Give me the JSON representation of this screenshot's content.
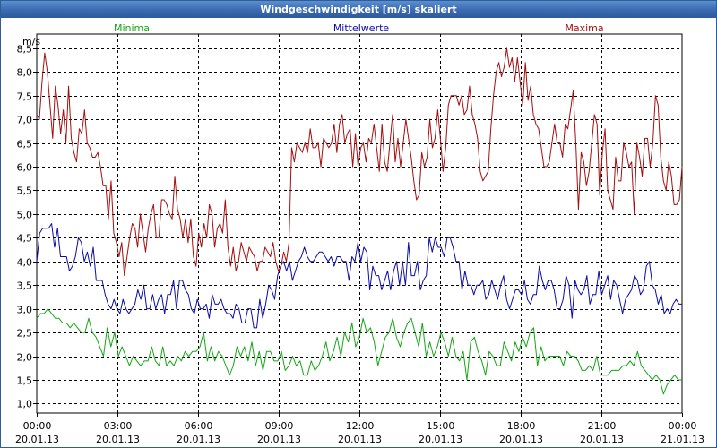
{
  "window": {
    "title": "Windgeschwindigkeit [m/s] skaliert"
  },
  "colors": {
    "min": "#13a713",
    "mean": "#0b0ba8",
    "max": "#a60d0d",
    "grid": "#000000",
    "text": "#000000"
  },
  "chart_data": {
    "type": "line",
    "title": "Windgeschwindigkeit [m/s] skaliert",
    "ylabel": "m/s",
    "xlabel": "",
    "ylim": [
      0.8,
      8.8
    ],
    "yticks": [
      "1,0",
      "1,5",
      "2,0",
      "2,5",
      "3,0",
      "3,5",
      "4,0",
      "4,5",
      "5,0",
      "5,5",
      "6,0",
      "6,5",
      "7,0",
      "7,5",
      "8,0",
      "8,5"
    ],
    "ytick_values": [
      1.0,
      1.5,
      2.0,
      2.5,
      3.0,
      3.5,
      4.0,
      4.5,
      5.0,
      5.5,
      6.0,
      6.5,
      7.0,
      7.5,
      8.0,
      8.5
    ],
    "xrange_hours": [
      0,
      24
    ],
    "xticks": [
      {
        "time": "00:00",
        "date": "20.01.13"
      },
      {
        "time": "03:00",
        "date": "20.01.13"
      },
      {
        "time": "06:00",
        "date": "20.01.13"
      },
      {
        "time": "09:00",
        "date": "20.01.13"
      },
      {
        "time": "12:00",
        "date": "20.01.13"
      },
      {
        "time": "15:00",
        "date": "20.01.13"
      },
      {
        "time": "18:00",
        "date": "20.01.13"
      },
      {
        "time": "21:00",
        "date": "20.01.13"
      },
      {
        "time": "00:00",
        "date": "21.01.13"
      }
    ],
    "grid": true,
    "legend_placement": "top",
    "series": [
      {
        "name": "Minima",
        "key": "min",
        "values": [
          2.8,
          2.9,
          2.9,
          3.0,
          2.9,
          2.8,
          2.8,
          2.7,
          2.7,
          2.6,
          2.7,
          2.6,
          2.5,
          2.5,
          2.8,
          2.5,
          2.4,
          2.2,
          2.0,
          2.6,
          2.2,
          2.5,
          2.0,
          2.2,
          2.0,
          1.8,
          2.0,
          1.9,
          1.8,
          1.9,
          1.9,
          2.2,
          1.9,
          1.8,
          2.2,
          1.8,
          1.9,
          1.8,
          2.0,
          1.9,
          2.1,
          2.0,
          2.1,
          2.1,
          2.2,
          2.5,
          1.9,
          2.2,
          1.9,
          2.1,
          2.0,
          1.8,
          1.6,
          1.8,
          2.2,
          2.0,
          2.2,
          1.9,
          2.3,
          1.8,
          2.1,
          1.7,
          2.1,
          2.1,
          1.9,
          1.9,
          2.1,
          1.7,
          1.8,
          2.0,
          1.8,
          1.9,
          1.6,
          1.6,
          1.9,
          1.7,
          1.8,
          2.0,
          2.3,
          1.9,
          2.1,
          2.4,
          2.0,
          2.5,
          2.3,
          2.7,
          2.2,
          2.4,
          2.8,
          2.5,
          2.6,
          2.3,
          1.8,
          2.1,
          2.4,
          2.5,
          2.8,
          2.4,
          2.2,
          2.5,
          2.7,
          2.8,
          2.5,
          2.2,
          2.7,
          2.0,
          2.3,
          2.0,
          2.2,
          2.5,
          2.3,
          2.0,
          2.4,
          2.0,
          1.9,
          2.1,
          1.5,
          2.3,
          2.4,
          2.1,
          1.9,
          1.6,
          2.1,
          2.0,
          1.8,
          1.8,
          2.3,
          2.1,
          1.9,
          2.3,
          2.1,
          2.4,
          2.2,
          2.5,
          2.6,
          1.8,
          2.2,
          1.9,
          2.0,
          2.0,
          2.0,
          2.0,
          1.8,
          2.1,
          2.0,
          2.0,
          1.9,
          1.7,
          1.7,
          1.8,
          1.7,
          2.0,
          1.6,
          1.6,
          1.6,
          1.7,
          1.7,
          1.7,
          1.8,
          1.8,
          1.9,
          1.8,
          2.1,
          1.8,
          1.7,
          1.6,
          1.5,
          1.6,
          1.5,
          1.2,
          1.4,
          1.5,
          1.6,
          1.5,
          1.5
        ]
      },
      {
        "name": "Mittelwerte",
        "key": "mean",
        "values": [
          4.0,
          4.6,
          4.7,
          4.7,
          4.7,
          4.8,
          4.3,
          4.7,
          4.1,
          4.1,
          4.1,
          3.8,
          3.9,
          4.1,
          4.5,
          4.4,
          4.0,
          4.2,
          3.9,
          4.3,
          3.6,
          3.6,
          3.6,
          3.3,
          3.1,
          3.0,
          3.2,
          3.0,
          2.9,
          3.2,
          3.0,
          2.9,
          3.0,
          3.1,
          3.4,
          3.2,
          3.5,
          3.0,
          3.0,
          3.3,
          3.0,
          3.2,
          3.3,
          2.9,
          3.3,
          3.3,
          3.6,
          3.0,
          3.6,
          3.6,
          3.4,
          3.3,
          3.0,
          2.9,
          3.2,
          3.0,
          3.0,
          3.1,
          2.8,
          3.3,
          3.1,
          3.1,
          3.2,
          3.0,
          2.9,
          2.9,
          2.8,
          3.1,
          3.0,
          2.7,
          2.7,
          3.0,
          3.0,
          2.6,
          2.6,
          3.2,
          2.8,
          3.1,
          3.5,
          3.4,
          3.2,
          3.7,
          3.9,
          4.0,
          3.8,
          4.0,
          3.6,
          3.8,
          4.0,
          4.1,
          4.3,
          4.1,
          4.0,
          4.0,
          4.1,
          4.2,
          4.2,
          4.1,
          4.0,
          4.1,
          3.9,
          4.1,
          4.1,
          4.0,
          4.0,
          3.6,
          4.1,
          4.0,
          4.4,
          4.0,
          4.3,
          4.2,
          3.4,
          3.9,
          3.7,
          3.7,
          3.4,
          3.6,
          3.8,
          3.4,
          3.8,
          4.0,
          3.5,
          4.0,
          3.5,
          4.4,
          3.7,
          3.7,
          4.0,
          3.4,
          3.6,
          3.7,
          4.5,
          4.2,
          4.5,
          4.3,
          4.3,
          4.1,
          4.5,
          4.5,
          4.3,
          4.0,
          4.0,
          3.4,
          3.8,
          3.5,
          3.5,
          3.3,
          3.5,
          3.5,
          3.6,
          3.2,
          3.3,
          3.6,
          3.4,
          3.2,
          3.5,
          3.7,
          3.2,
          3.0,
          3.2,
          3.4,
          3.4,
          3.3,
          3.6,
          3.2,
          3.1,
          3.3,
          3.3,
          3.9,
          3.6,
          3.4,
          3.6,
          3.6,
          3.4,
          3.0,
          3.0,
          3.2,
          3.7,
          3.5,
          2.8,
          3.6,
          3.4,
          3.3,
          3.4,
          3.7,
          3.1,
          3.3,
          3.3,
          3.8,
          3.3,
          3.5,
          3.7,
          3.2,
          3.6,
          3.5,
          3.2,
          2.9,
          3.2,
          3.3,
          3.4,
          3.7,
          3.6,
          3.3,
          3.4,
          3.9,
          4.0,
          3.5,
          3.4,
          3.1,
          3.3,
          2.9,
          3.0,
          2.9,
          3.1,
          3.2,
          3.1,
          3.1
        ]
      },
      {
        "name": "Maxima",
        "key": "max",
        "values": [
          7.1,
          7.0,
          7.8,
          8.4,
          8.0,
          7.3,
          6.6,
          7.7,
          7.3,
          6.7,
          7.2,
          6.5,
          7.7,
          6.6,
          6.3,
          6.1,
          6.8,
          6.7,
          7.2,
          6.5,
          6.4,
          6.2,
          6.2,
          6.3,
          6.0,
          5.6,
          5.6,
          4.9,
          5.7,
          4.6,
          4.4,
          4.1,
          4.4,
          3.7,
          4.1,
          4.5,
          4.8,
          4.7,
          4.3,
          5.0,
          4.6,
          4.2,
          4.7,
          5.0,
          5.2,
          4.5,
          4.5,
          5.3,
          5.3,
          5.2,
          5.0,
          4.9,
          5.8,
          5.1,
          4.9,
          4.5,
          4.9,
          4.4,
          4.9,
          4.1,
          3.9,
          4.6,
          4.3,
          4.8,
          4.5,
          5.2,
          5.0,
          4.3,
          4.7,
          4.8,
          4.6,
          5.3,
          4.3,
          3.9,
          4.3,
          3.8,
          4.0,
          4.4,
          4.2,
          4.0,
          4.3,
          4.2,
          4.1,
          3.8,
          4.0,
          4.0,
          4.3,
          4.2,
          4.1,
          4.4,
          4.0,
          3.8,
          3.9,
          4.2,
          4.0,
          4.4,
          6.4,
          6.1,
          6.5,
          6.4,
          6.3,
          6.5,
          6.3,
          6.8,
          6.4,
          6.4,
          6.5,
          6.0,
          6.6,
          6.5,
          6.4,
          6.5,
          6.9,
          6.3,
          6.9,
          7.1,
          6.5,
          6.7,
          6.8,
          6.0,
          6.7,
          6.0,
          6.4,
          6.5,
          6.1,
          6.6,
          6.5,
          6.9,
          6.4,
          5.9,
          6.9,
          6.1,
          5.9,
          6.5,
          7.1,
          6.1,
          6.6,
          6.0,
          6.5,
          7.0,
          6.6,
          6.2,
          5.7,
          5.3,
          5.4,
          6.3,
          6.0,
          6.2,
          7.0,
          6.4,
          6.6,
          7.2,
          6.6,
          5.9,
          6.4,
          7.3,
          7.5,
          7.5,
          7.5,
          7.3,
          7.5,
          7.1,
          7.2,
          7.7,
          7.1,
          6.9,
          6.6,
          5.9,
          5.7,
          5.8,
          5.9,
          6.8,
          7.5,
          8.0,
          8.2,
          7.9,
          8.1,
          8.5,
          8.1,
          8.3,
          7.8,
          8.3,
          7.8,
          7.3,
          8.2,
          7.4,
          7.7,
          7.1,
          6.9,
          6.8,
          6.4,
          6.0,
          6.0,
          6.1,
          6.5,
          6.9,
          6.5,
          6.5,
          6.2,
          6.9,
          6.8,
          7.2,
          7.6,
          6.5,
          5.1,
          6.3,
          6.1,
          5.6,
          5.9,
          6.5,
          7.1,
          6.9,
          5.4,
          6.3,
          6.8,
          5.5,
          5.3,
          5.1,
          6.2,
          5.7,
          5.7,
          6.5,
          6.3,
          6.0,
          6.1,
          5.0,
          6.5,
          6.2,
          5.8,
          6.6,
          6.6,
          6.0,
          6.5,
          7.5,
          7.3,
          6.2,
          5.7,
          5.5,
          6.1,
          5.8,
          5.2,
          5.2,
          5.3,
          6.0
        ]
      }
    ]
  }
}
